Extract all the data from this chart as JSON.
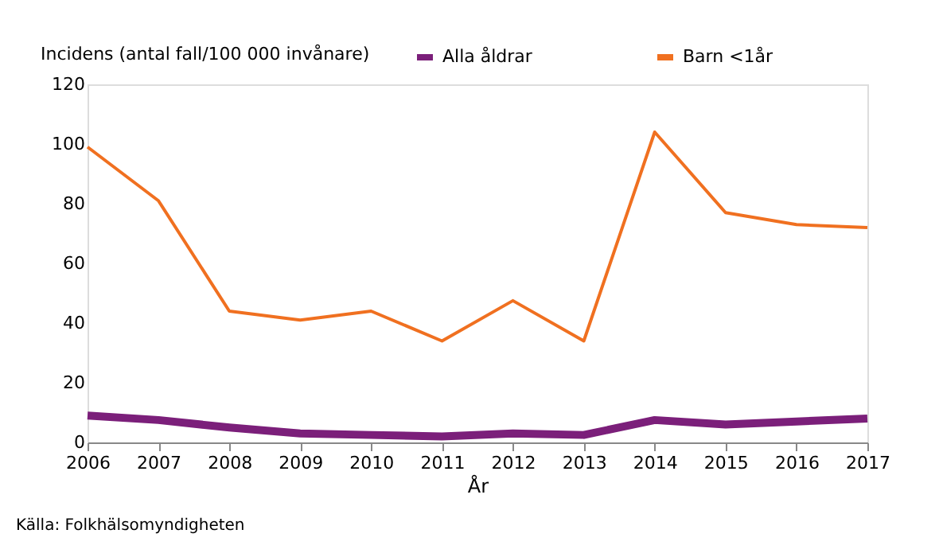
{
  "chart_data": {
    "type": "line",
    "xlabel": "År",
    "ylabel": "Incidens (antal fall/100 000 invånare)",
    "x": [
      2006,
      2007,
      2008,
      2009,
      2010,
      2011,
      2012,
      2013,
      2014,
      2015,
      2016,
      2017
    ],
    "series": [
      {
        "name": "Alla åldrar",
        "color": "#7b1f7a",
        "values": [
          9,
          7.5,
          5,
          3,
          2.5,
          2,
          3,
          2.5,
          7.5,
          6,
          7,
          8
        ]
      },
      {
        "name": "Barn <1år",
        "color": "#f07020",
        "values": [
          99,
          81,
          44,
          41,
          44,
          34,
          47.5,
          34,
          104,
          77,
          73,
          72
        ]
      }
    ],
    "xlim": [
      2006,
      2017
    ],
    "xticks": [
      2006,
      2007,
      2008,
      2009,
      2010,
      2011,
      2012,
      2013,
      2014,
      2015,
      2016,
      2017
    ],
    "ylim": [
      0,
      120
    ],
    "yticks": [
      0,
      20,
      40,
      60,
      80,
      100,
      120
    ],
    "grid": false,
    "legend": "top",
    "marker": "none",
    "line_style": "solid",
    "annotations": [
      "Källa: Folkhälsomyndigheten"
    ]
  }
}
